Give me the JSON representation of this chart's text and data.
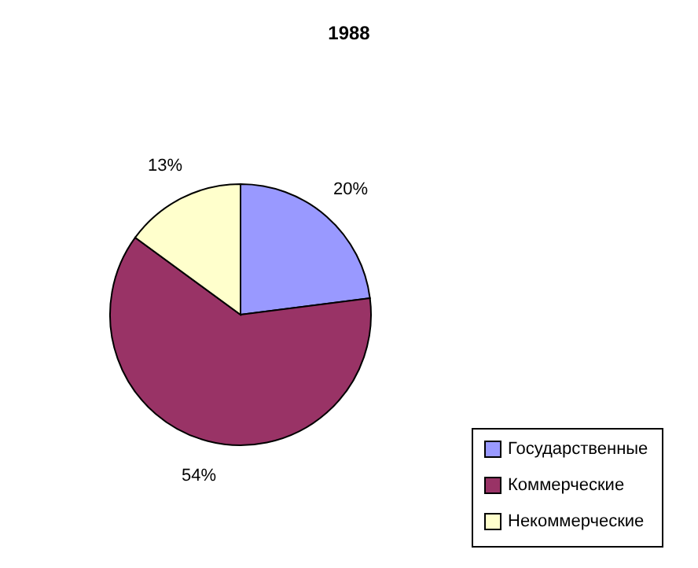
{
  "chart_data": {
    "type": "pie",
    "title": "1988",
    "categories": [
      "Государственные",
      "Коммерческие",
      "Некоммерческие"
    ],
    "values": [
      20,
      54,
      13
    ],
    "colors": [
      "#9999ff",
      "#993366",
      "#ffffcc"
    ],
    "value_labels": [
      "20%",
      "54%",
      "13%"
    ],
    "legend": "bottom right"
  }
}
